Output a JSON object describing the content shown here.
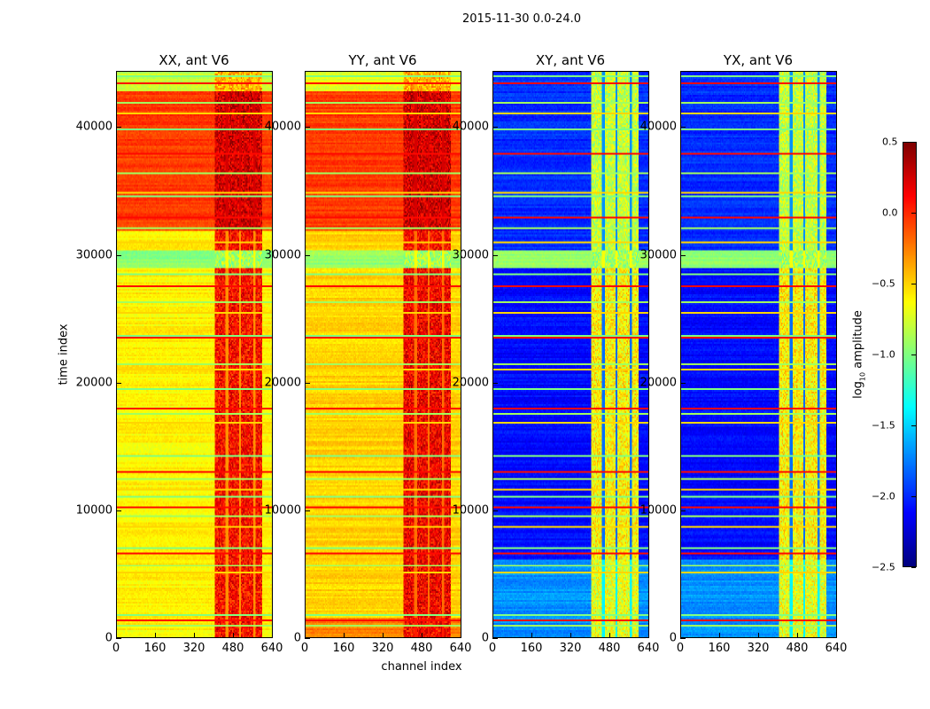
{
  "chart_data": {
    "type": "heatmap",
    "title": "2015-11-30 0.0-24.0",
    "xlabel": "channel index",
    "ylabel": "time index",
    "xlim": [
      0,
      640
    ],
    "ylim": [
      0,
      44400
    ],
    "xticks": [
      "0",
      "160",
      "320",
      "480",
      "640"
    ],
    "yticks": [
      "0",
      "10000",
      "20000",
      "30000",
      "40000"
    ],
    "grid": false,
    "colorbar": {
      "label_prefix": "log",
      "label_sub": "10",
      "label_suffix": " amplitude",
      "range": [
        -2.5,
        0.5
      ],
      "ticks": [
        "0.5",
        "0.0",
        "−0.5",
        "−1.0",
        "−1.5",
        "−2.0",
        "−2.5"
      ],
      "colormap": "jet"
    },
    "rfi_channel_band": [
      405,
      600
    ],
    "rfi_channel_gaps": [
      455,
      510,
      570
    ],
    "flagged_time_rows": [
      800,
      1200,
      1700,
      5000,
      5600,
      6500,
      7000,
      8600,
      9500,
      10200,
      11000,
      11500,
      12400,
      13000,
      14200,
      16800,
      17500,
      18000,
      19500,
      21000,
      21400,
      23500,
      23700,
      25500,
      26300,
      27500,
      28500,
      31000,
      32200,
      33000,
      34600,
      35000,
      36500,
      38000,
      40000,
      41200,
      42000,
      43500,
      44100
    ],
    "panels": [
      {
        "title": "XX, ant V6",
        "segments": [
          {
            "t0": 0,
            "t1": 29000,
            "level": -0.6,
            "rfi_level": 0.1
          },
          {
            "t0": 29000,
            "t1": 30400,
            "level": -0.95,
            "rfi_level": -0.9
          },
          {
            "t0": 30400,
            "t1": 32000,
            "level": -0.6,
            "rfi_level": 0.1
          },
          {
            "t0": 32000,
            "t1": 43000,
            "level": -0.05,
            "rfi_level": 0.25
          },
          {
            "t0": 43000,
            "t1": 44400,
            "level": -0.8,
            "rfi_level": -0.4
          }
        ]
      },
      {
        "title": "YY, ant V6",
        "segments": [
          {
            "t0": 0,
            "t1": 1500,
            "level": -0.25,
            "rfi_level": 0.1
          },
          {
            "t0": 1500,
            "t1": 29000,
            "level": -0.5,
            "rfi_level": 0.15
          },
          {
            "t0": 29000,
            "t1": 30400,
            "level": -0.95,
            "rfi_level": -0.9
          },
          {
            "t0": 30400,
            "t1": 32000,
            "level": -0.5,
            "rfi_level": 0.1
          },
          {
            "t0": 32000,
            "t1": 43000,
            "level": -0.05,
            "rfi_level": 0.25
          },
          {
            "t0": 43000,
            "t1": 44400,
            "level": -0.7,
            "rfi_level": -0.4
          }
        ]
      },
      {
        "title": "XY, ant V6",
        "segments": [
          {
            "t0": 0,
            "t1": 6000,
            "level": -1.7,
            "rfi_level": -0.7
          },
          {
            "t0": 6000,
            "t1": 29000,
            "level": -2.1,
            "rfi_level": -0.6
          },
          {
            "t0": 29000,
            "t1": 30400,
            "level": -0.95,
            "rfi_level": -0.9
          },
          {
            "t0": 30400,
            "t1": 44400,
            "level": -2.0,
            "rfi_level": -0.8
          }
        ]
      },
      {
        "title": "YX, ant V6",
        "segments": [
          {
            "t0": 0,
            "t1": 6000,
            "level": -1.7,
            "rfi_level": -0.7
          },
          {
            "t0": 6000,
            "t1": 29000,
            "level": -2.1,
            "rfi_level": -0.6
          },
          {
            "t0": 29000,
            "t1": 30400,
            "level": -0.95,
            "rfi_level": -0.9
          },
          {
            "t0": 30400,
            "t1": 44400,
            "level": -2.0,
            "rfi_level": -0.8
          }
        ]
      }
    ]
  }
}
